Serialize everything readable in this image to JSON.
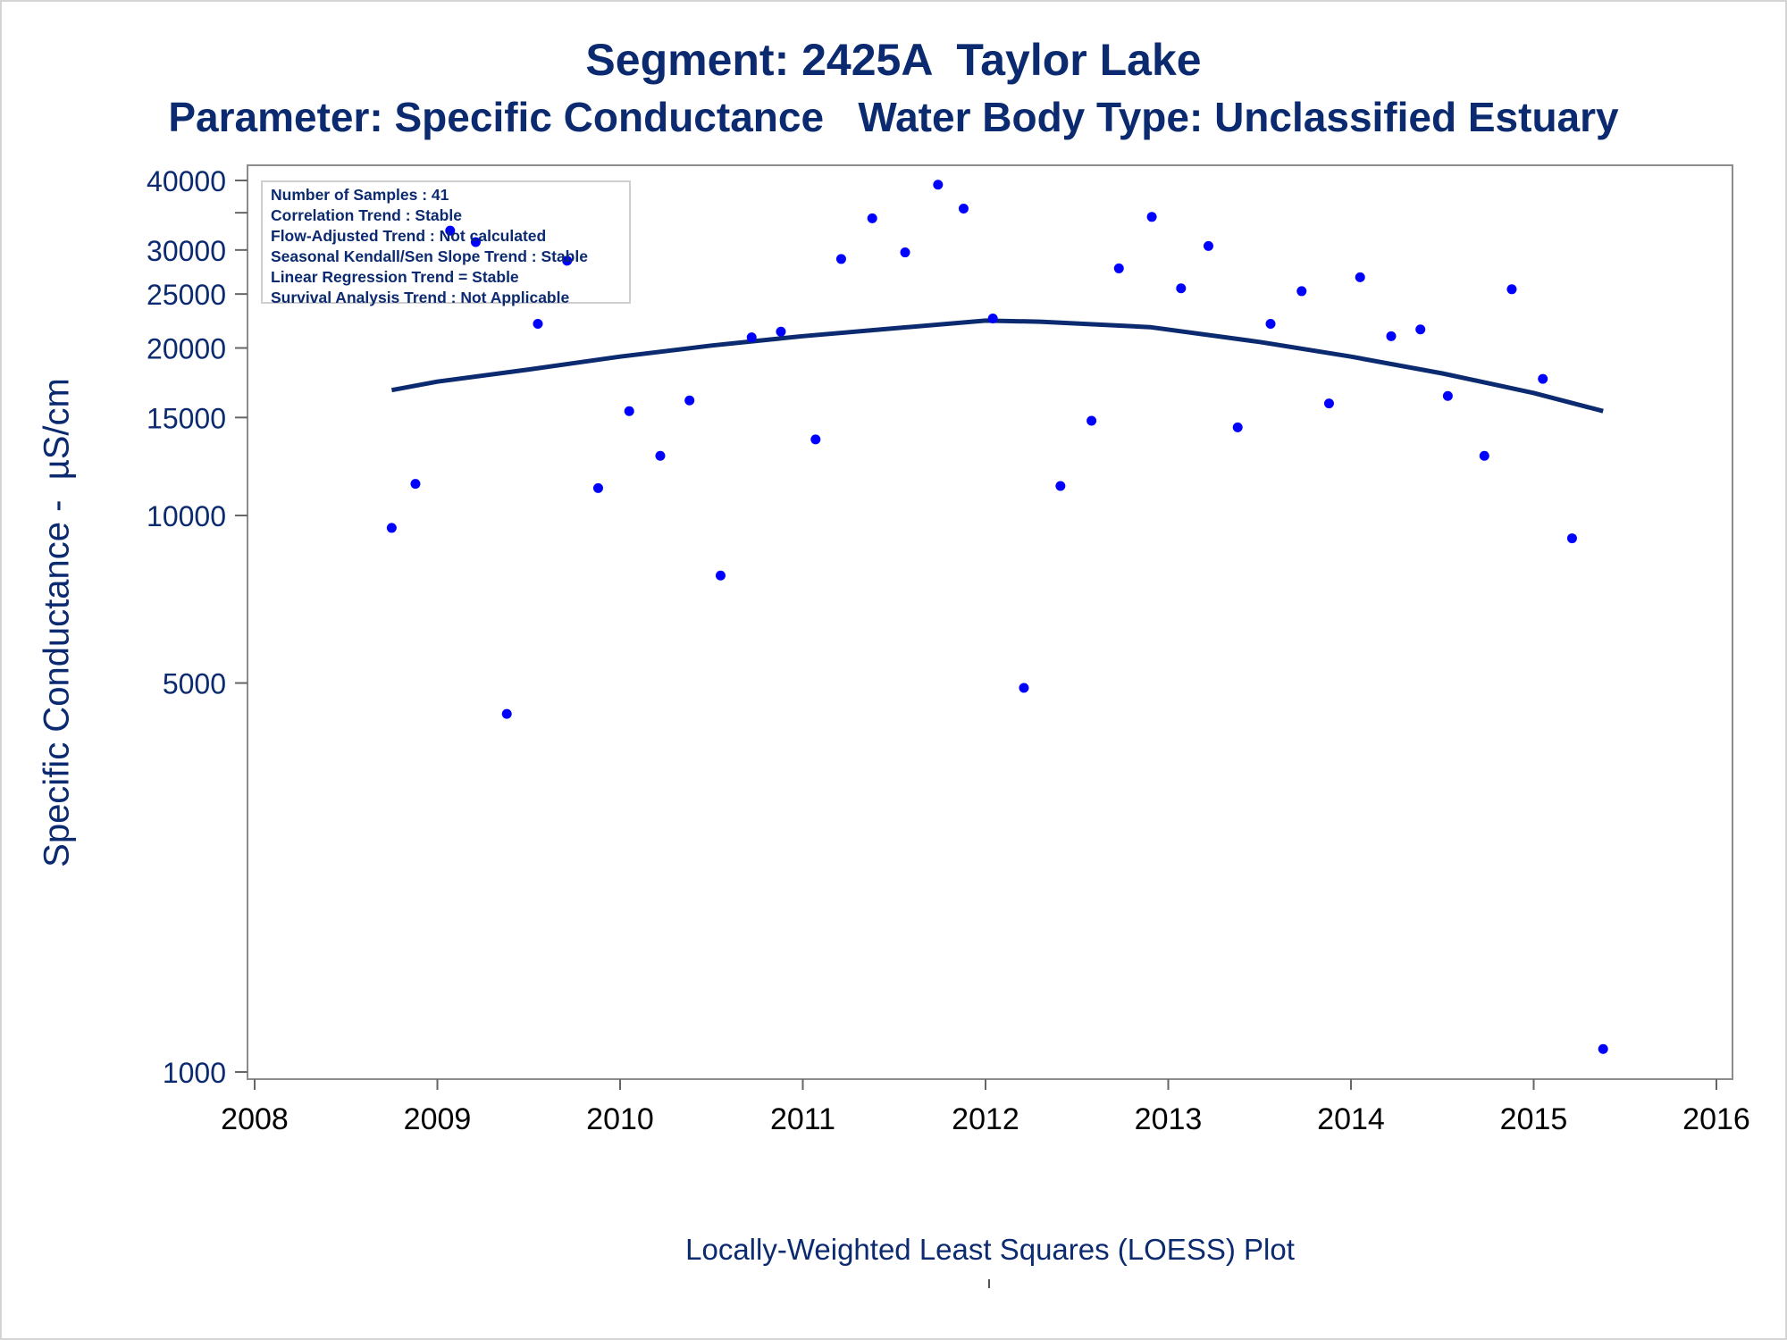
{
  "title": "Segment: 2425A  Taylor Lake",
  "subtitle": "Parameter: Specific Conductance   Water Body Type: Unclassified Estuary",
  "footnote": "Locally-Weighted Least Squares (LOESS) Plot",
  "colors": {
    "text": "#0b2a6f",
    "points": "#0000ff",
    "loess_line": "#0b2a6f",
    "axis_frame": "#8c8c8c"
  },
  "stats": [
    "Number of Samples : 41",
    "Correlation Trend : Stable",
    "Flow-Adjusted Trend : Not calculated",
    "Seasonal Kendall/Sen Slope Trend : Stable",
    "Linear Regression Trend = Stable",
    "Survival Analysis Trend : Not Applicable"
  ],
  "chart_data": {
    "type": "scatter",
    "title": "Segment: 2425A  Taylor Lake",
    "subtitle": "Parameter: Specific Conductance   Water Body Type: Unclassified Estuary",
    "xlabel": "",
    "ylabel": "Specific Conductance -  µS/cm",
    "xlim": [
      2008,
      2016
    ],
    "ylim": [
      1000,
      40000
    ],
    "y_scale": "log",
    "x_ticks": [
      2008,
      2009,
      2010,
      2011,
      2012,
      2013,
      2014,
      2015,
      2016
    ],
    "y_ticks": [
      1000,
      5000,
      10000,
      15000,
      20000,
      25000,
      30000,
      40000
    ],
    "grid": false,
    "series": [
      {
        "type": "scatter",
        "points": [
          {
            "x": 2008.75,
            "y": 9500
          },
          {
            "x": 2008.88,
            "y": 11400
          },
          {
            "x": 2009.07,
            "y": 32500
          },
          {
            "x": 2009.21,
            "y": 31000
          },
          {
            "x": 2009.38,
            "y": 4400
          },
          {
            "x": 2009.55,
            "y": 22100
          },
          {
            "x": 2009.71,
            "y": 28700
          },
          {
            "x": 2009.88,
            "y": 11200
          },
          {
            "x": 2010.05,
            "y": 15400
          },
          {
            "x": 2010.22,
            "y": 12800
          },
          {
            "x": 2010.38,
            "y": 16100
          },
          {
            "x": 2010.55,
            "y": 7800
          },
          {
            "x": 2010.72,
            "y": 20900
          },
          {
            "x": 2010.88,
            "y": 21400
          },
          {
            "x": 2011.07,
            "y": 13700
          },
          {
            "x": 2011.21,
            "y": 28900
          },
          {
            "x": 2011.38,
            "y": 34200
          },
          {
            "x": 2011.56,
            "y": 29700
          },
          {
            "x": 2011.74,
            "y": 39300
          },
          {
            "x": 2011.88,
            "y": 35600
          },
          {
            "x": 2012.04,
            "y": 22600
          },
          {
            "x": 2012.21,
            "y": 4900
          },
          {
            "x": 2012.41,
            "y": 11300
          },
          {
            "x": 2012.58,
            "y": 14800
          },
          {
            "x": 2012.73,
            "y": 27800
          },
          {
            "x": 2012.91,
            "y": 34400
          },
          {
            "x": 2013.07,
            "y": 25600
          },
          {
            "x": 2013.22,
            "y": 30500
          },
          {
            "x": 2013.38,
            "y": 14400
          },
          {
            "x": 2013.56,
            "y": 22100
          },
          {
            "x": 2013.73,
            "y": 25300
          },
          {
            "x": 2013.88,
            "y": 15900
          },
          {
            "x": 2014.05,
            "y": 26800
          },
          {
            "x": 2014.22,
            "y": 21000
          },
          {
            "x": 2014.38,
            "y": 21600
          },
          {
            "x": 2014.53,
            "y": 16400
          },
          {
            "x": 2014.73,
            "y": 12800
          },
          {
            "x": 2014.88,
            "y": 25500
          },
          {
            "x": 2015.05,
            "y": 17600
          },
          {
            "x": 2015.21,
            "y": 9100
          },
          {
            "x": 2015.38,
            "y": 1100
          }
        ]
      },
      {
        "type": "line",
        "points": [
          {
            "x": 2008.75,
            "y": 16800
          },
          {
            "x": 2009.0,
            "y": 17400
          },
          {
            "x": 2009.5,
            "y": 18300
          },
          {
            "x": 2010.0,
            "y": 19300
          },
          {
            "x": 2010.5,
            "y": 20200
          },
          {
            "x": 2011.0,
            "y": 21000
          },
          {
            "x": 2011.5,
            "y": 21700
          },
          {
            "x": 2012.0,
            "y": 22400
          },
          {
            "x": 2012.3,
            "y": 22300
          },
          {
            "x": 2012.9,
            "y": 21800
          },
          {
            "x": 2013.5,
            "y": 20500
          },
          {
            "x": 2014.0,
            "y": 19300
          },
          {
            "x": 2014.5,
            "y": 18000
          },
          {
            "x": 2015.0,
            "y": 16600
          },
          {
            "x": 2015.38,
            "y": 15400
          }
        ]
      }
    ]
  }
}
